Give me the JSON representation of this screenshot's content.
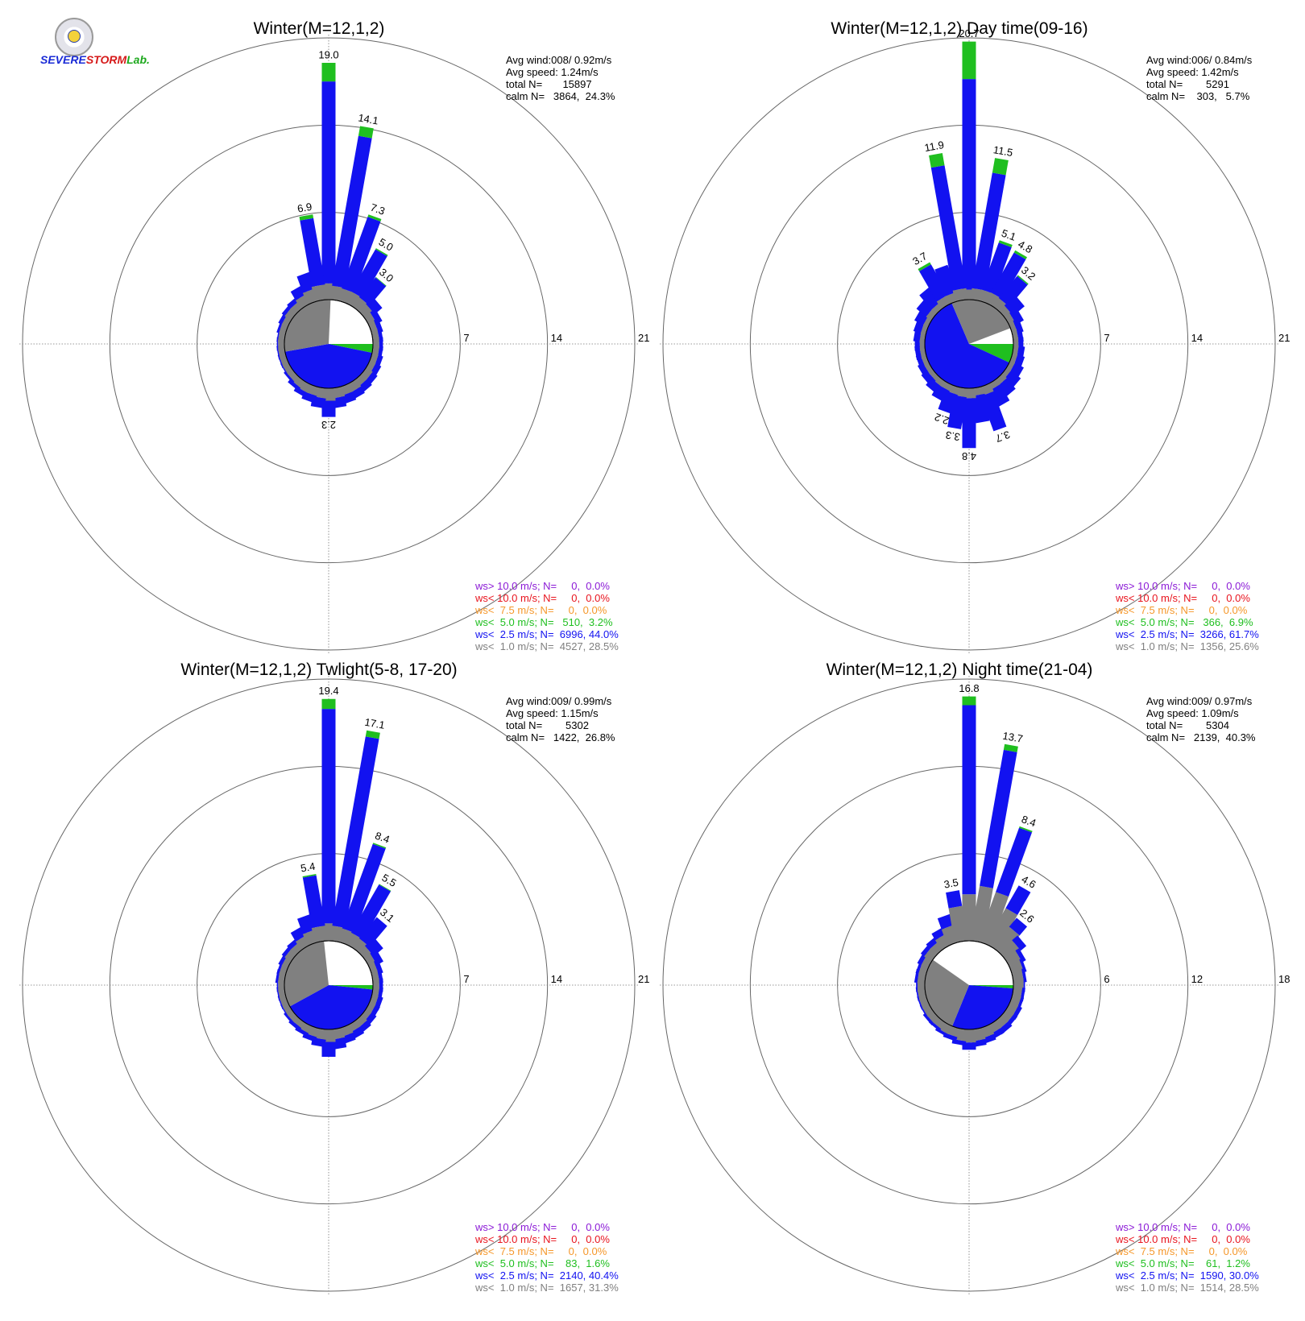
{
  "logo": {
    "text_a": "SEVERE",
    "text_b": "STORM",
    "text_c": "Lab."
  },
  "colors": {
    "ws_gt_10": "#8b1ad6",
    "ws_lt_10": "#e8141e",
    "ws_lt_7_5": "#f5972a",
    "ws_lt_5": "#1fbf1f",
    "ws_lt_2_5": "#1212f0",
    "ws_lt_1": "#808080",
    "grid": "#666666",
    "text": "#000000"
  },
  "chart_data": [
    {
      "type": "polar-bar",
      "title": "Winter(M=12,1,2)",
      "stats": [
        "Avg wind:008/ 0.92m/s",
        "Avg speed: 1.24m/s",
        "total N=       15897",
        "calm N=   3864,  24.3%"
      ],
      "rings": [
        7,
        14,
        21
      ],
      "ring_labels": [
        "7",
        "14",
        "21"
      ],
      "bars": [
        {
          "deg": 0,
          "value": 19.0,
          "label": "19.0",
          "gray": 1.3,
          "green": 1.5
        },
        {
          "deg": 10,
          "value": 14.1,
          "label": "14.1",
          "gray": 1.1,
          "green": 0.8
        },
        {
          "deg": 20,
          "value": 7.3,
          "label": "7.3",
          "gray": 1.0,
          "green": 0.2
        },
        {
          "deg": 30,
          "value": 5.0,
          "label": "5.0",
          "gray": 1.0,
          "green": 0.1
        },
        {
          "deg": 40,
          "value": 3.0,
          "label": "3.0",
          "gray": 0.9,
          "green": 0.05
        },
        {
          "deg": 50,
          "value": 1.6,
          "gray": 0.8
        },
        {
          "deg": 60,
          "value": 1.1,
          "gray": 0.6
        },
        {
          "deg": 70,
          "value": 0.9,
          "gray": 0.5
        },
        {
          "deg": 80,
          "value": 0.8,
          "gray": 0.5
        },
        {
          "deg": 90,
          "value": 0.8,
          "gray": 0.5
        },
        {
          "deg": 100,
          "value": 0.8,
          "gray": 0.5
        },
        {
          "deg": 110,
          "value": 0.9,
          "gray": 0.5
        },
        {
          "deg": 120,
          "value": 1.0,
          "gray": 0.5
        },
        {
          "deg": 130,
          "value": 1.1,
          "gray": 0.6
        },
        {
          "deg": 140,
          "value": 1.2,
          "gray": 0.6
        },
        {
          "deg": 150,
          "value": 1.3,
          "gray": 0.7
        },
        {
          "deg": 160,
          "value": 1.4,
          "gray": 0.7
        },
        {
          "deg": 170,
          "value": 1.6,
          "gray": 0.8
        },
        {
          "deg": 180,
          "value": 2.3,
          "label": "2.3",
          "gray": 1.0
        },
        {
          "deg": 190,
          "value": 1.6,
          "gray": 0.8
        },
        {
          "deg": 200,
          "value": 1.3,
          "gray": 0.7
        },
        {
          "deg": 210,
          "value": 1.1,
          "gray": 0.7
        },
        {
          "deg": 220,
          "value": 0.9,
          "gray": 0.6
        },
        {
          "deg": 230,
          "value": 0.7,
          "gray": 0.5
        },
        {
          "deg": 240,
          "value": 0.6,
          "gray": 0.5
        },
        {
          "deg": 250,
          "value": 0.6,
          "gray": 0.5
        },
        {
          "deg": 260,
          "value": 0.6,
          "gray": 0.5
        },
        {
          "deg": 270,
          "value": 0.6,
          "gray": 0.5
        },
        {
          "deg": 280,
          "value": 0.6,
          "gray": 0.5
        },
        {
          "deg": 290,
          "value": 0.7,
          "gray": 0.5
        },
        {
          "deg": 300,
          "value": 0.8,
          "gray": 0.5
        },
        {
          "deg": 310,
          "value": 0.9,
          "gray": 0.6
        },
        {
          "deg": 320,
          "value": 1.0,
          "gray": 0.6
        },
        {
          "deg": 330,
          "value": 1.6,
          "gray": 0.8
        },
        {
          "deg": 340,
          "value": 2.4,
          "gray": 1.0
        },
        {
          "deg": 350,
          "value": 6.9,
          "label": "6.9",
          "gray": 1.2,
          "green": 0.3
        }
      ],
      "calm_pie": {
        "gray": 28.5,
        "blue": 44.0,
        "green": 3.2
      },
      "legend": [
        {
          "text": "ws> 10.0 m/s; N=     0,  0.0%",
          "color": "ws_gt_10"
        },
        {
          "text": "ws< 10.0 m/s; N=     0,  0.0%",
          "color": "ws_lt_10"
        },
        {
          "text": "ws<  7.5 m/s; N=     0,  0.0%",
          "color": "ws_lt_7_5"
        },
        {
          "text": "ws<  5.0 m/s; N=   510,  3.2%",
          "color": "ws_lt_5"
        },
        {
          "text": "ws<  2.5 m/s; N=  6996, 44.0%",
          "color": "ws_lt_2_5"
        },
        {
          "text": "ws<  1.0 m/s; N=  4527, 28.5%",
          "color": "ws_lt_1"
        }
      ]
    },
    {
      "type": "polar-bar",
      "title": "Winter(M=12,1,2) Day time(09-16)",
      "stats": [
        "Avg wind:006/ 0.84m/s",
        "Avg speed: 1.42m/s",
        "total N=        5291",
        "calm N=    303,   5.7%"
      ],
      "rings": [
        7,
        14,
        21
      ],
      "ring_labels": [
        "7",
        "14",
        "21"
      ],
      "bars": [
        {
          "deg": 0,
          "value": 20.7,
          "label": "20.7",
          "gray": 0.8,
          "green": 3.0
        },
        {
          "deg": 10,
          "value": 11.5,
          "label": "11.5",
          "gray": 0.9,
          "green": 1.2
        },
        {
          "deg": 20,
          "value": 5.1,
          "label": "5.1",
          "gray": 0.9,
          "green": 0.2
        },
        {
          "deg": 30,
          "value": 4.8,
          "label": "4.8",
          "gray": 0.9,
          "green": 0.2
        },
        {
          "deg": 40,
          "value": 3.2,
          "label": "3.2",
          "gray": 0.8,
          "green": 0.1
        },
        {
          "deg": 50,
          "value": 1.8,
          "gray": 0.6
        },
        {
          "deg": 60,
          "value": 1.2,
          "gray": 0.5
        },
        {
          "deg": 70,
          "value": 0.9,
          "gray": 0.4
        },
        {
          "deg": 80,
          "value": 0.8,
          "gray": 0.4
        },
        {
          "deg": 90,
          "value": 0.8,
          "gray": 0.4
        },
        {
          "deg": 100,
          "value": 0.9,
          "gray": 0.4
        },
        {
          "deg": 110,
          "value": 1.0,
          "gray": 0.4
        },
        {
          "deg": 120,
          "value": 1.2,
          "gray": 0.4
        },
        {
          "deg": 130,
          "value": 1.4,
          "gray": 0.4
        },
        {
          "deg": 140,
          "value": 1.6,
          "gray": 0.5
        },
        {
          "deg": 150,
          "value": 2.0,
          "gray": 0.5
        },
        {
          "deg": 160,
          "value": 3.7,
          "label": "3.7",
          "gray": 0.7
        },
        {
          "deg": 170,
          "value": 2.8,
          "gray": 0.6
        },
        {
          "deg": 180,
          "value": 4.8,
          "label": "4.8",
          "gray": 0.8
        },
        {
          "deg": 190,
          "value": 3.3,
          "label": "3.3",
          "gray": 0.7
        },
        {
          "deg": 200,
          "value": 2.2,
          "label": "2.2",
          "gray": 0.6
        },
        {
          "deg": 210,
          "value": 1.5,
          "gray": 0.5
        },
        {
          "deg": 220,
          "value": 1.2,
          "gray": 0.5
        },
        {
          "deg": 230,
          "value": 1.0,
          "gray": 0.4
        },
        {
          "deg": 240,
          "value": 0.9,
          "gray": 0.4
        },
        {
          "deg": 250,
          "value": 0.8,
          "gray": 0.4
        },
        {
          "deg": 260,
          "value": 0.8,
          "gray": 0.4
        },
        {
          "deg": 270,
          "value": 0.8,
          "gray": 0.4
        },
        {
          "deg": 280,
          "value": 0.9,
          "gray": 0.4
        },
        {
          "deg": 290,
          "value": 1.0,
          "gray": 0.4
        },
        {
          "deg": 300,
          "value": 1.2,
          "gray": 0.4
        },
        {
          "deg": 310,
          "value": 1.5,
          "gray": 0.5
        },
        {
          "deg": 320,
          "value": 2.0,
          "gray": 0.5
        },
        {
          "deg": 330,
          "value": 3.7,
          "label": "3.7",
          "gray": 0.7,
          "green": 0.2
        },
        {
          "deg": 340,
          "value": 3.0,
          "gray": 0.7
        },
        {
          "deg": 350,
          "value": 11.9,
          "label": "11.9",
          "gray": 0.9,
          "green": 1.0
        }
      ],
      "calm_pie": {
        "gray": 25.6,
        "blue": 61.7,
        "green": 6.9
      },
      "legend": [
        {
          "text": "ws> 10.0 m/s; N=     0,  0.0%",
          "color": "ws_gt_10"
        },
        {
          "text": "ws< 10.0 m/s; N=     0,  0.0%",
          "color": "ws_lt_10"
        },
        {
          "text": "ws<  7.5 m/s; N=     0,  0.0%",
          "color": "ws_lt_7_5"
        },
        {
          "text": "ws<  5.0 m/s; N=   366,  6.9%",
          "color": "ws_lt_5"
        },
        {
          "text": "ws<  2.5 m/s; N=  3266, 61.7%",
          "color": "ws_lt_2_5"
        },
        {
          "text": "ws<  1.0 m/s; N=  1356, 25.6%",
          "color": "ws_lt_1"
        }
      ]
    },
    {
      "type": "polar-bar",
      "title": "Winter(M=12,1,2) Twlight(5-8, 17-20)",
      "stats": [
        "Avg wind:009/ 0.99m/s",
        "Avg speed: 1.15m/s",
        "total N=        5302",
        "calm N=   1422,  26.8%"
      ],
      "rings": [
        7,
        14,
        21
      ],
      "ring_labels": [
        "7",
        "14",
        "21"
      ],
      "bars": [
        {
          "deg": 0,
          "value": 19.4,
          "label": "19.4",
          "gray": 1.4,
          "green": 0.8
        },
        {
          "deg": 10,
          "value": 17.1,
          "label": "17.1",
          "gray": 1.2,
          "green": 0.5
        },
        {
          "deg": 20,
          "value": 8.4,
          "label": "8.4",
          "gray": 1.1,
          "green": 0.1
        },
        {
          "deg": 30,
          "value": 5.5,
          "label": "5.5",
          "gray": 1.0,
          "green": 0.05
        },
        {
          "deg": 40,
          "value": 3.1,
          "label": "3.1",
          "gray": 0.9
        },
        {
          "deg": 50,
          "value": 1.7,
          "gray": 0.7
        },
        {
          "deg": 60,
          "value": 1.2,
          "gray": 0.6
        },
        {
          "deg": 70,
          "value": 0.9,
          "gray": 0.5
        },
        {
          "deg": 80,
          "value": 0.8,
          "gray": 0.5
        },
        {
          "deg": 90,
          "value": 0.8,
          "gray": 0.5
        },
        {
          "deg": 100,
          "value": 0.8,
          "gray": 0.5
        },
        {
          "deg": 110,
          "value": 0.9,
          "gray": 0.5
        },
        {
          "deg": 120,
          "value": 0.9,
          "gray": 0.5
        },
        {
          "deg": 130,
          "value": 1.0,
          "gray": 0.5
        },
        {
          "deg": 140,
          "value": 1.1,
          "gray": 0.6
        },
        {
          "deg": 150,
          "value": 1.2,
          "gray": 0.6
        },
        {
          "deg": 160,
          "value": 1.3,
          "gray": 0.7
        },
        {
          "deg": 170,
          "value": 1.6,
          "gray": 0.8
        },
        {
          "deg": 180,
          "value": 2.2,
          "gray": 1.0
        },
        {
          "deg": 190,
          "value": 1.4,
          "gray": 0.8
        },
        {
          "deg": 200,
          "value": 1.1,
          "gray": 0.7
        },
        {
          "deg": 210,
          "value": 0.9,
          "gray": 0.6
        },
        {
          "deg": 220,
          "value": 0.8,
          "gray": 0.5
        },
        {
          "deg": 230,
          "value": 0.7,
          "gray": 0.5
        },
        {
          "deg": 240,
          "value": 0.6,
          "gray": 0.5
        },
        {
          "deg": 250,
          "value": 0.6,
          "gray": 0.5
        },
        {
          "deg": 260,
          "value": 0.6,
          "gray": 0.5
        },
        {
          "deg": 270,
          "value": 0.6,
          "gray": 0.5
        },
        {
          "deg": 280,
          "value": 0.7,
          "gray": 0.5
        },
        {
          "deg": 290,
          "value": 0.7,
          "gray": 0.5
        },
        {
          "deg": 300,
          "value": 0.8,
          "gray": 0.5
        },
        {
          "deg": 310,
          "value": 0.9,
          "gray": 0.6
        },
        {
          "deg": 320,
          "value": 1.0,
          "gray": 0.6
        },
        {
          "deg": 330,
          "value": 1.6,
          "gray": 0.8
        },
        {
          "deg": 340,
          "value": 2.3,
          "gray": 1.0
        },
        {
          "deg": 350,
          "value": 5.4,
          "label": "5.4",
          "gray": 1.2,
          "green": 0.1
        }
      ],
      "calm_pie": {
        "gray": 31.3,
        "blue": 40.4,
        "green": 1.6
      },
      "legend": [
        {
          "text": "ws> 10.0 m/s; N=     0,  0.0%",
          "color": "ws_gt_10"
        },
        {
          "text": "ws< 10.0 m/s; N=     0,  0.0%",
          "color": "ws_lt_10"
        },
        {
          "text": "ws<  7.5 m/s; N=     0,  0.0%",
          "color": "ws_lt_7_5"
        },
        {
          "text": "ws<  5.0 m/s; N=    83,  1.6%",
          "color": "ws_lt_5"
        },
        {
          "text": "ws<  2.5 m/s; N=  2140, 40.4%",
          "color": "ws_lt_2_5"
        },
        {
          "text": "ws<  1.0 m/s; N=  1657, 31.3%",
          "color": "ws_lt_1"
        }
      ]
    },
    {
      "type": "polar-bar",
      "title": "Winter(M=12,1,2) Night time(21-04)",
      "stats": [
        "Avg wind:009/ 0.97m/s",
        "Avg speed: 1.09m/s",
        "total N=        5304",
        "calm N=   2139,  40.3%"
      ],
      "rings": [
        6,
        12,
        18
      ],
      "ring_labels": [
        "6",
        "12",
        "18"
      ],
      "bars": [
        {
          "deg": 0,
          "value": 16.8,
          "label": "16.8",
          "gray": 3.2,
          "green": 0.6
        },
        {
          "deg": 10,
          "value": 13.7,
          "label": "13.7",
          "gray": 3.8,
          "green": 0.4
        },
        {
          "deg": 20,
          "value": 8.4,
          "label": "8.4",
          "gray": 3.6,
          "green": 0.1
        },
        {
          "deg": 30,
          "value": 4.6,
          "label": "4.6",
          "gray": 2.8
        },
        {
          "deg": 40,
          "value": 2.6,
          "label": "2.6",
          "gray": 1.8
        },
        {
          "deg": 50,
          "value": 1.7,
          "gray": 1.2
        },
        {
          "deg": 60,
          "value": 1.2,
          "gray": 0.9
        },
        {
          "deg": 70,
          "value": 1.0,
          "gray": 0.8
        },
        {
          "deg": 80,
          "value": 0.9,
          "gray": 0.7
        },
        {
          "deg": 90,
          "value": 0.8,
          "gray": 0.7
        },
        {
          "deg": 100,
          "value": 0.8,
          "gray": 0.6
        },
        {
          "deg": 110,
          "value": 0.8,
          "gray": 0.6
        },
        {
          "deg": 120,
          "value": 0.9,
          "gray": 0.6
        },
        {
          "deg": 130,
          "value": 0.9,
          "gray": 0.6
        },
        {
          "deg": 140,
          "value": 1.0,
          "gray": 0.6
        },
        {
          "deg": 150,
          "value": 1.0,
          "gray": 0.6
        },
        {
          "deg": 160,
          "value": 1.1,
          "gray": 0.7
        },
        {
          "deg": 170,
          "value": 1.2,
          "gray": 0.8
        },
        {
          "deg": 180,
          "value": 1.4,
          "gray": 0.9
        },
        {
          "deg": 190,
          "value": 1.1,
          "gray": 0.8
        },
        {
          "deg": 200,
          "value": 0.9,
          "gray": 0.6
        },
        {
          "deg": 210,
          "value": 0.8,
          "gray": 0.6
        },
        {
          "deg": 220,
          "value": 0.7,
          "gray": 0.5
        },
        {
          "deg": 230,
          "value": 0.7,
          "gray": 0.5
        },
        {
          "deg": 240,
          "value": 0.6,
          "gray": 0.5
        },
        {
          "deg": 250,
          "value": 0.6,
          "gray": 0.5
        },
        {
          "deg": 260,
          "value": 0.6,
          "gray": 0.5
        },
        {
          "deg": 270,
          "value": 0.6,
          "gray": 0.5
        },
        {
          "deg": 280,
          "value": 0.7,
          "gray": 0.5
        },
        {
          "deg": 290,
          "value": 0.7,
          "gray": 0.5
        },
        {
          "deg": 300,
          "value": 0.8,
          "gray": 0.5
        },
        {
          "deg": 310,
          "value": 0.9,
          "gray": 0.6
        },
        {
          "deg": 320,
          "value": 1.0,
          "gray": 0.6
        },
        {
          "deg": 330,
          "value": 1.3,
          "gray": 0.8
        },
        {
          "deg": 340,
          "value": 2.0,
          "gray": 1.2
        },
        {
          "deg": 350,
          "value": 3.5,
          "label": "3.5",
          "gray": 2.4
        }
      ],
      "calm_pie": {
        "gray": 28.5,
        "blue": 30.0,
        "green": 1.2
      },
      "legend": [
        {
          "text": "ws> 10.0 m/s; N=     0,  0.0%",
          "color": "ws_gt_10"
        },
        {
          "text": "ws< 10.0 m/s; N=     0,  0.0%",
          "color": "ws_lt_10"
        },
        {
          "text": "ws<  7.5 m/s; N=     0,  0.0%",
          "color": "ws_lt_7_5"
        },
        {
          "text": "ws<  5.0 m/s; N=    61,  1.2%",
          "color": "ws_lt_5"
        },
        {
          "text": "ws<  2.5 m/s; N=  1590, 30.0%",
          "color": "ws_lt_2_5"
        },
        {
          "text": "ws<  1.0 m/s; N=  1514, 28.5%",
          "color": "ws_lt_1"
        }
      ]
    }
  ]
}
